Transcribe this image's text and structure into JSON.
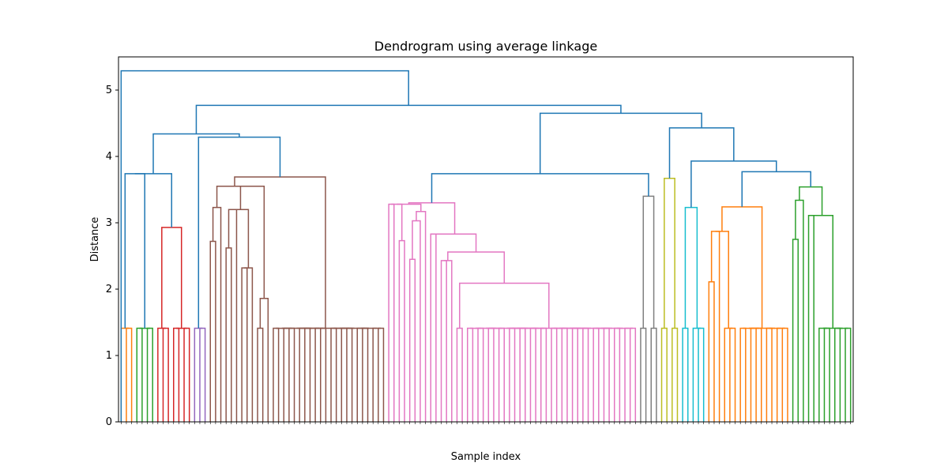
{
  "chart_data": {
    "type": "dendrogram",
    "title": "Dendrogram using average linkage",
    "xlabel": "Sample index",
    "ylabel": "Distance",
    "ylim": [
      0,
      5.5
    ],
    "yticks": [
      0,
      1,
      2,
      3,
      4,
      5
    ],
    "leaf_count": 140,
    "above_threshold_color": "#1f77b4",
    "leaf_height": 1.41,
    "clusters": [
      {
        "color": "#ff7f0e",
        "leaves": 3,
        "merges": []
      },
      {
        "color": "#2ca02c",
        "leaves": 4,
        "merges": []
      },
      {
        "color": "#d62728",
        "leaves": 7,
        "merges": [
          {
            "height": 2.93,
            "split": 3
          }
        ]
      },
      {
        "color": "#9467bd",
        "leaves": 3,
        "merges": []
      },
      {
        "color": "#8c564b",
        "leaves": 34,
        "merges": [
          {
            "height": 3.69,
            "split": 12
          },
          {
            "height": 3.52,
            "split": 3
          },
          {
            "height": 3.23,
            "split": 3
          },
          {
            "height": 2.72,
            "split": 3
          },
          {
            "height": 3.55,
            "split": 6
          },
          {
            "height": 2.57,
            "split": 3
          },
          {
            "height": 3.2,
            "split": 5
          },
          {
            "height": 2.62,
            "split": 3
          },
          {
            "height": 1.86,
            "split": 2
          },
          {
            "height": 2.32,
            "split": 3
          },
          {
            "height": 1.86,
            "split": 2
          }
        ]
      },
      {
        "color": "#e377c2",
        "leaves": 48,
        "merges": [
          {
            "height": 3.3,
            "split": 8
          },
          {
            "height": 2.75,
            "split": 4
          },
          {
            "height": 1.86,
            "split": 2
          },
          {
            "height": 3.28,
            "split": 6
          },
          {
            "height": 2.73,
            "split": 3
          },
          {
            "height": 3.17,
            "split": 4
          },
          {
            "height": 3.03,
            "split": 4
          },
          {
            "height": 2.45,
            "split": 2
          },
          {
            "height": 2.08,
            "split": 2
          },
          {
            "height": 2.83,
            "split": 4
          },
          {
            "height": 2.56,
            "split": 3
          },
          {
            "height": 1.86,
            "split": 2
          },
          {
            "height": 2.43,
            "split": 3
          },
          {
            "height": 2.09,
            "split": 2
          }
        ]
      },
      {
        "color": "#7f7f7f",
        "leaves": 4,
        "merges": [
          {
            "height": 3.4,
            "split": 2
          }
        ]
      },
      {
        "color": "#bcbd22",
        "leaves": 4,
        "merges": [
          {
            "height": 3.67,
            "split": 2
          }
        ]
      },
      {
        "color": "#17becf",
        "leaves": 5,
        "merges": [
          {
            "height": 3.23,
            "split": 2
          }
        ]
      },
      {
        "color": "#ff7f0e",
        "leaves": 16,
        "merges": [
          {
            "height": 3.24,
            "split": 6
          },
          {
            "height": 1.92,
            "split": 3
          },
          {
            "height": 2.87,
            "split": 4
          },
          {
            "height": 2.11,
            "split": 2
          }
        ]
      },
      {
        "color": "#2ca02c",
        "leaves": 12,
        "merges": [
          {
            "height": 3.54,
            "split": 3
          },
          {
            "height": 3.34,
            "split": 5
          },
          {
            "height": 2.75,
            "split": 2
          },
          {
            "height": 2.73,
            "split": 2
          },
          {
            "height": 3.11,
            "split": 2
          }
        ]
      }
    ],
    "upper_merges": [
      {
        "left": [
          0,
          1
        ],
        "right": [
          2,
          2
        ],
        "height": 3.74
      },
      {
        "left": [
          3,
          3
        ],
        "right": [
          4,
          4
        ],
        "height": 4.29
      },
      {
        "left": [
          0,
          2
        ],
        "right": [
          3,
          4
        ],
        "height": 4.34
      },
      {
        "left": [
          5,
          5
        ],
        "right": [
          6,
          6
        ],
        "height": 3.74
      },
      {
        "left": [
          8,
          8
        ],
        "right": [
          9,
          10
        ],
        "height": 3.77
      },
      {
        "left": [
          8,
          10
        ],
        "right": [
          8,
          10
        ],
        "height": 3.77
      },
      {
        "left": [
          8,
          10
        ],
        "right": [
          8,
          10
        ],
        "height": 3.93
      },
      {
        "left": [
          7,
          7
        ],
        "right": [
          8,
          10
        ],
        "height": 4.43
      },
      {
        "left": [
          5,
          6
        ],
        "right": [
          7,
          10
        ],
        "height": 4.65
      },
      {
        "left": [
          0,
          4
        ],
        "right": [
          5,
          10
        ],
        "height": 4.77
      }
    ],
    "root_height": 5.29
  }
}
